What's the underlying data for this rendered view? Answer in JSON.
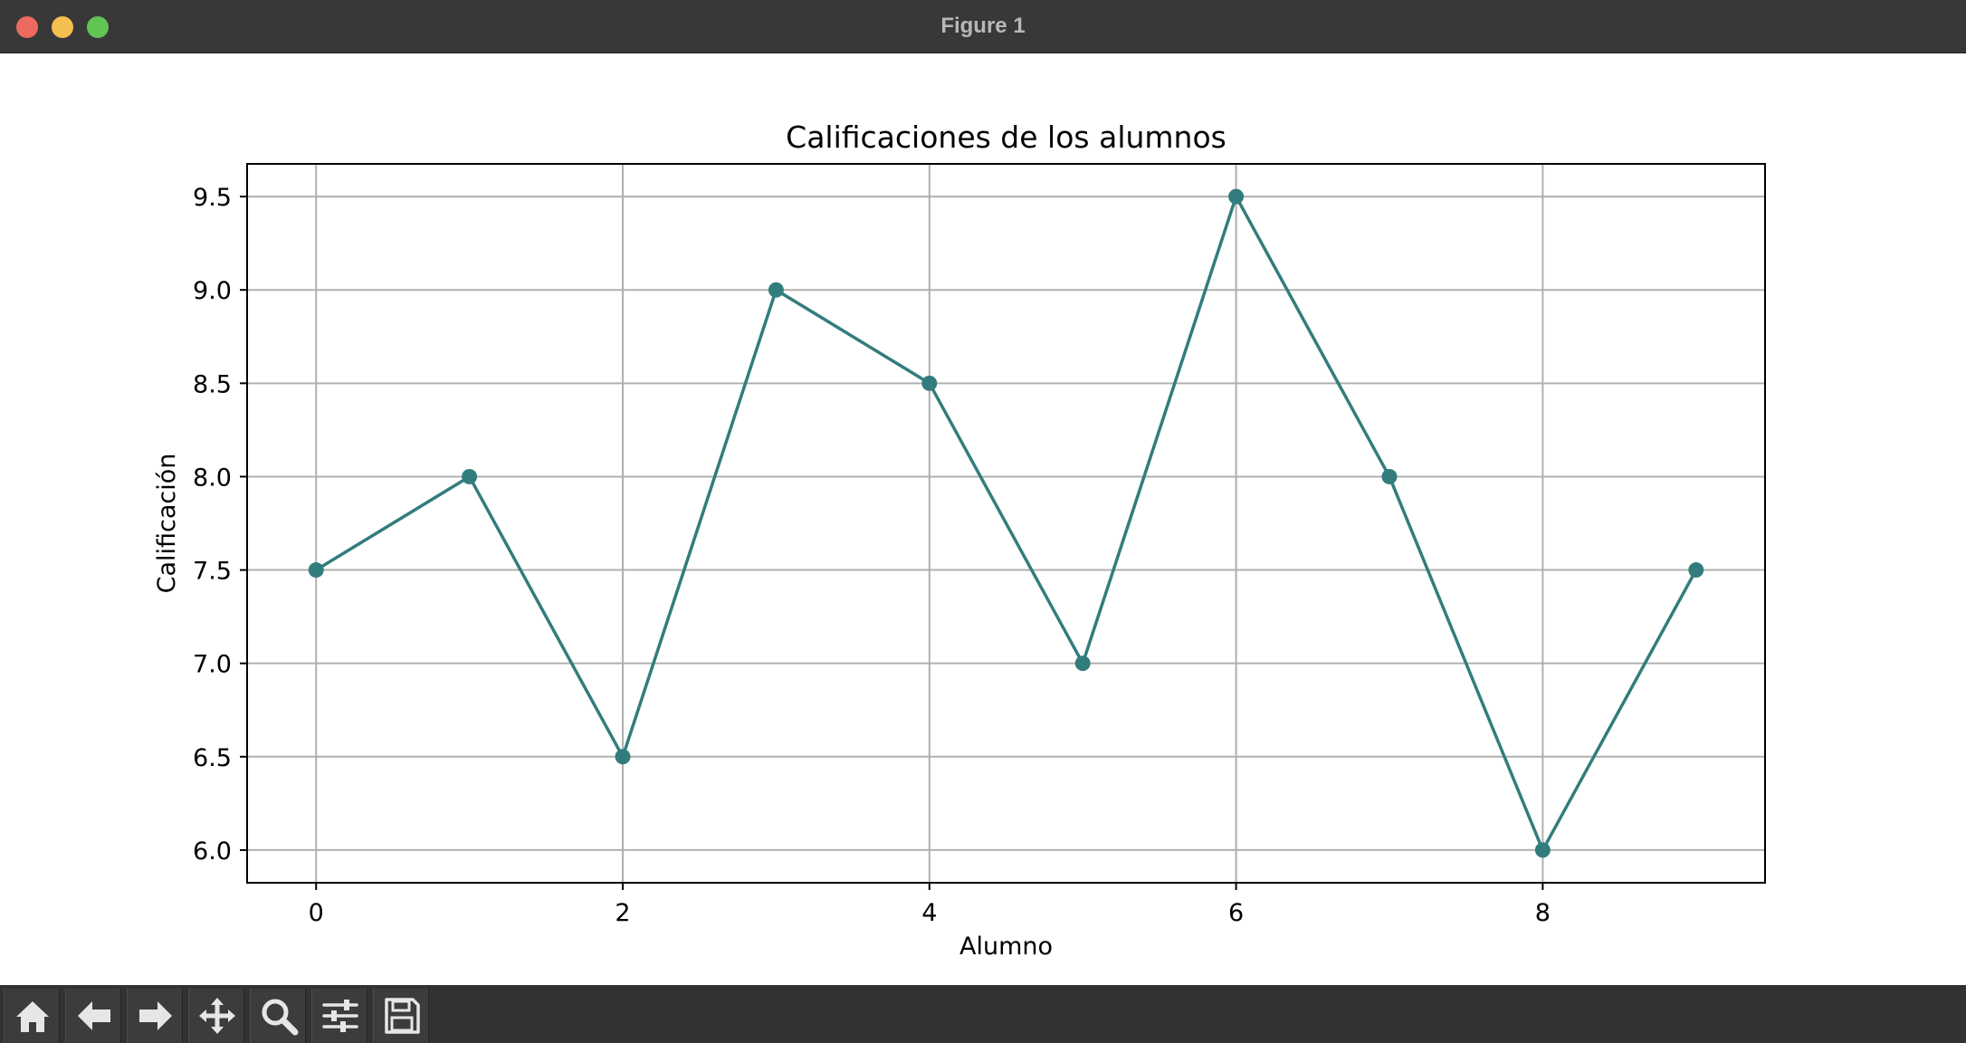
{
  "window": {
    "title": "Figure 1"
  },
  "toolbar": {
    "buttons": [
      {
        "name": "home",
        "icon": "home-icon"
      },
      {
        "name": "back",
        "icon": "arrow-left-icon"
      },
      {
        "name": "forward",
        "icon": "arrow-right-icon"
      },
      {
        "name": "pan",
        "icon": "move-icon"
      },
      {
        "name": "zoom",
        "icon": "search-icon"
      },
      {
        "name": "configure-subplots",
        "icon": "sliders-icon"
      },
      {
        "name": "save",
        "icon": "floppy-disk-icon"
      }
    ]
  },
  "chart_data": {
    "type": "line",
    "title": "Calificaciones de los alumnos",
    "xlabel": "Alumno",
    "ylabel": "Calificación",
    "x": [
      0,
      1,
      2,
      3,
      4,
      5,
      6,
      7,
      8,
      9
    ],
    "series": [
      {
        "values": [
          7.5,
          8.0,
          6.5,
          9.0,
          8.5,
          7.0,
          9.5,
          8.0,
          6.0,
          7.5
        ],
        "color": "#337c7e",
        "marker": "circle"
      }
    ],
    "xticks": [
      "0",
      "2",
      "4",
      "6",
      "8"
    ],
    "yticks": [
      "6.0",
      "6.5",
      "7.0",
      "7.5",
      "8.0",
      "8.5",
      "9.0",
      "9.5"
    ],
    "xlim": [
      -0.45,
      9.45
    ],
    "ylim": [
      5.825,
      9.675
    ],
    "grid": true
  }
}
